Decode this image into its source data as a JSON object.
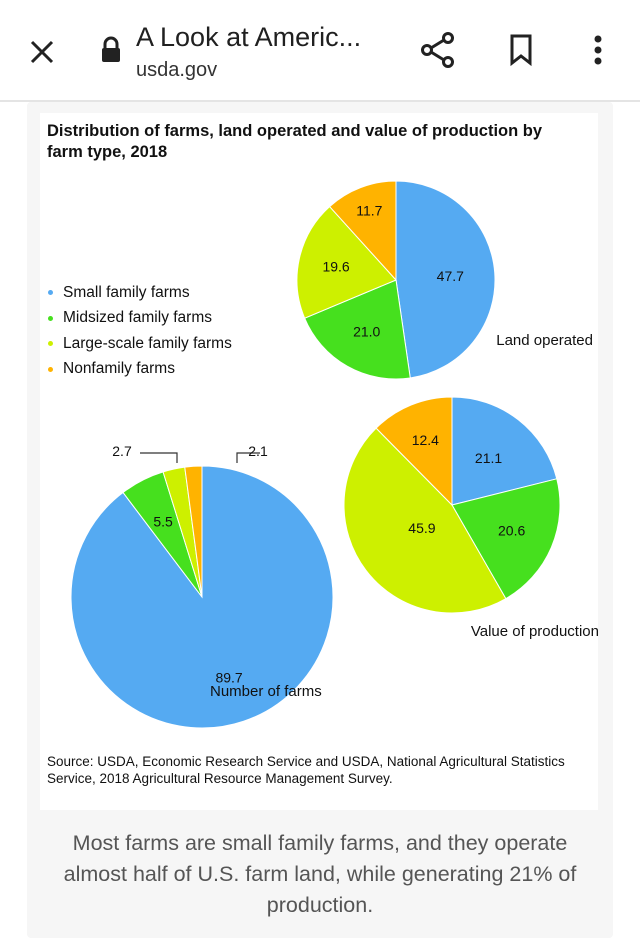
{
  "browser": {
    "title": "A Look at Americ...",
    "url": "usda.gov",
    "icons": [
      "close-icon",
      "lock-icon",
      "share-icon",
      "bookmark-icon",
      "more-vert-icon"
    ]
  },
  "caption": "Most farms are small family farms, and they operate almost half of U.S. farm land, while generating 21% of production.",
  "chart_data": {
    "type": "pie",
    "title": "Distribution of farms, land operated and value of production by farm type, 2018",
    "legend": {
      "placement": "left",
      "entries": [
        "Small family farms",
        "Midsized family farms",
        "Large-scale family farms",
        "Nonfamily farms"
      ]
    },
    "colors": [
      "#55aaf2",
      "#46e01e",
      "#cdf000",
      "#ffb300"
    ],
    "pies": [
      {
        "name": "Land operated",
        "values": [
          47.7,
          21.0,
          19.6,
          11.7
        ]
      },
      {
        "name": "Value of production",
        "values": [
          21.1,
          20.6,
          45.9,
          12.4
        ]
      },
      {
        "name": "Number of farms",
        "values": [
          89.7,
          5.5,
          2.7,
          2.1
        ]
      }
    ],
    "source": "Source: USDA, Economic Research Service and USDA, National Agricultural Statistics Service, 2018 Agricultural Resource Management Survey."
  }
}
